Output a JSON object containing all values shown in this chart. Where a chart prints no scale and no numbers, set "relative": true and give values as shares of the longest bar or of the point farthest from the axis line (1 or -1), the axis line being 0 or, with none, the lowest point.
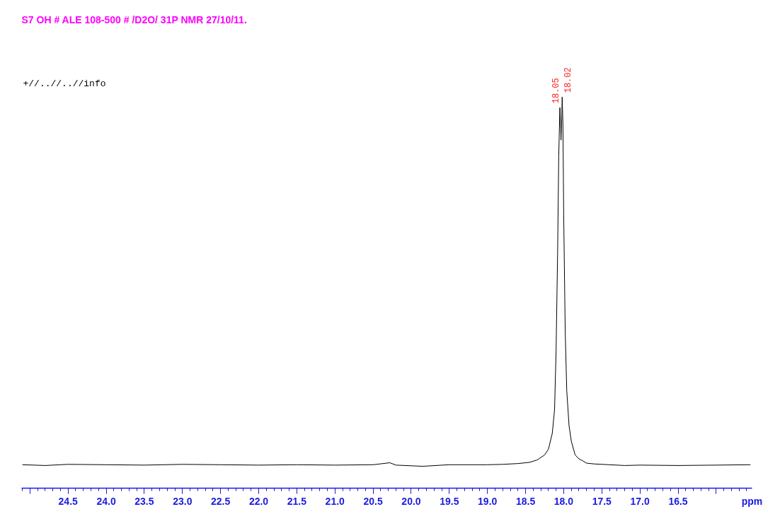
{
  "chart_data": {
    "type": "line",
    "title": "S7 OH # ALE 108-500 # /D2O/  31P NMR  27/10/11.",
    "xlabel": "ppm",
    "relative": true,
    "color": "#000000",
    "grid": false,
    "marker": "none",
    "line_style": "solid",
    "x": [
      25.1,
      24.8,
      24.5,
      24.0,
      23.5,
      23.0,
      22.5,
      22.0,
      21.5,
      21.0,
      20.5,
      20.28,
      20.2,
      19.85,
      19.5,
      19.0,
      18.8,
      18.6,
      18.45,
      18.35,
      18.25,
      18.2,
      18.15,
      18.12,
      18.1,
      18.08,
      18.065,
      18.05,
      18.04,
      18.035,
      18.025,
      18.02,
      18.01,
      18.0,
      17.98,
      17.96,
      17.93,
      17.9,
      17.85,
      17.8,
      17.75,
      17.7,
      17.6,
      17.4,
      17.2,
      17.0,
      16.5,
      16.0,
      15.55
    ],
    "values": [
      0.06,
      0.058,
      0.061,
      0.06,
      0.059,
      0.061,
      0.06,
      0.059,
      0.06,
      0.059,
      0.06,
      0.065,
      0.059,
      0.056,
      0.06,
      0.06,
      0.061,
      0.063,
      0.066,
      0.072,
      0.085,
      0.1,
      0.14,
      0.2,
      0.35,
      0.6,
      0.85,
      0.973,
      0.92,
      0.89,
      0.95,
      1.0,
      0.93,
      0.7,
      0.4,
      0.25,
      0.16,
      0.12,
      0.085,
      0.075,
      0.07,
      0.064,
      0.062,
      0.06,
      0.058,
      0.059,
      0.058,
      0.059,
      0.06
    ],
    "xlim": [
      25.11,
      15.53
    ],
    "xticks": [
      {
        "value": 25,
        "label": null
      },
      24.5,
      {
        "value": 24,
        "label": "24.0"
      },
      23.5,
      {
        "value": 23,
        "label": "23.0"
      },
      22.5,
      {
        "value": 22,
        "label": "22.0"
      },
      21.5,
      {
        "value": 21,
        "label": "21.0"
      },
      20.5,
      {
        "value": 20,
        "label": "20.0"
      },
      19.5,
      {
        "value": 19,
        "label": "19.0"
      },
      18.5,
      {
        "value": 18,
        "label": "18.0"
      },
      17.5,
      {
        "value": 17,
        "label": "17.0"
      },
      16.5,
      {
        "value": 16,
        "label": null
      }
    ],
    "annotations": [
      "+//..//..//info",
      {
        "text": "18.05",
        "x": 18.05,
        "y": 0.973
      },
      {
        "text": "18.02",
        "x": 18.02,
        "y": 1.0
      }
    ]
  }
}
